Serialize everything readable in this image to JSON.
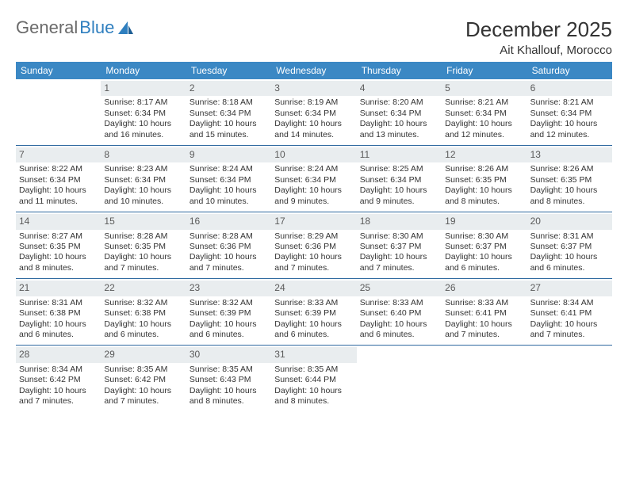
{
  "brand": {
    "part1": "General",
    "part2": "Blue",
    "logo_color": "#2f7fbf",
    "text_color": "#6a6a6a"
  },
  "header": {
    "title": "December 2025",
    "location": "Ait Khallouf, Morocco"
  },
  "colors": {
    "header_bg": "#3b88c4",
    "header_fg": "#ffffff",
    "divider": "#2f6aa0",
    "daynum_bg": "#e9edef"
  },
  "daynames": [
    "Sunday",
    "Monday",
    "Tuesday",
    "Wednesday",
    "Thursday",
    "Friday",
    "Saturday"
  ],
  "weeks": [
    [
      {
        "num": "",
        "sunrise": "",
        "sunset": "",
        "daylight": ""
      },
      {
        "num": "1",
        "sunrise": "Sunrise: 8:17 AM",
        "sunset": "Sunset: 6:34 PM",
        "daylight": "Daylight: 10 hours and 16 minutes."
      },
      {
        "num": "2",
        "sunrise": "Sunrise: 8:18 AM",
        "sunset": "Sunset: 6:34 PM",
        "daylight": "Daylight: 10 hours and 15 minutes."
      },
      {
        "num": "3",
        "sunrise": "Sunrise: 8:19 AM",
        "sunset": "Sunset: 6:34 PM",
        "daylight": "Daylight: 10 hours and 14 minutes."
      },
      {
        "num": "4",
        "sunrise": "Sunrise: 8:20 AM",
        "sunset": "Sunset: 6:34 PM",
        "daylight": "Daylight: 10 hours and 13 minutes."
      },
      {
        "num": "5",
        "sunrise": "Sunrise: 8:21 AM",
        "sunset": "Sunset: 6:34 PM",
        "daylight": "Daylight: 10 hours and 12 minutes."
      },
      {
        "num": "6",
        "sunrise": "Sunrise: 8:21 AM",
        "sunset": "Sunset: 6:34 PM",
        "daylight": "Daylight: 10 hours and 12 minutes."
      }
    ],
    [
      {
        "num": "7",
        "sunrise": "Sunrise: 8:22 AM",
        "sunset": "Sunset: 6:34 PM",
        "daylight": "Daylight: 10 hours and 11 minutes."
      },
      {
        "num": "8",
        "sunrise": "Sunrise: 8:23 AM",
        "sunset": "Sunset: 6:34 PM",
        "daylight": "Daylight: 10 hours and 10 minutes."
      },
      {
        "num": "9",
        "sunrise": "Sunrise: 8:24 AM",
        "sunset": "Sunset: 6:34 PM",
        "daylight": "Daylight: 10 hours and 10 minutes."
      },
      {
        "num": "10",
        "sunrise": "Sunrise: 8:24 AM",
        "sunset": "Sunset: 6:34 PM",
        "daylight": "Daylight: 10 hours and 9 minutes."
      },
      {
        "num": "11",
        "sunrise": "Sunrise: 8:25 AM",
        "sunset": "Sunset: 6:34 PM",
        "daylight": "Daylight: 10 hours and 9 minutes."
      },
      {
        "num": "12",
        "sunrise": "Sunrise: 8:26 AM",
        "sunset": "Sunset: 6:35 PM",
        "daylight": "Daylight: 10 hours and 8 minutes."
      },
      {
        "num": "13",
        "sunrise": "Sunrise: 8:26 AM",
        "sunset": "Sunset: 6:35 PM",
        "daylight": "Daylight: 10 hours and 8 minutes."
      }
    ],
    [
      {
        "num": "14",
        "sunrise": "Sunrise: 8:27 AM",
        "sunset": "Sunset: 6:35 PM",
        "daylight": "Daylight: 10 hours and 8 minutes."
      },
      {
        "num": "15",
        "sunrise": "Sunrise: 8:28 AM",
        "sunset": "Sunset: 6:35 PM",
        "daylight": "Daylight: 10 hours and 7 minutes."
      },
      {
        "num": "16",
        "sunrise": "Sunrise: 8:28 AM",
        "sunset": "Sunset: 6:36 PM",
        "daylight": "Daylight: 10 hours and 7 minutes."
      },
      {
        "num": "17",
        "sunrise": "Sunrise: 8:29 AM",
        "sunset": "Sunset: 6:36 PM",
        "daylight": "Daylight: 10 hours and 7 minutes."
      },
      {
        "num": "18",
        "sunrise": "Sunrise: 8:30 AM",
        "sunset": "Sunset: 6:37 PM",
        "daylight": "Daylight: 10 hours and 7 minutes."
      },
      {
        "num": "19",
        "sunrise": "Sunrise: 8:30 AM",
        "sunset": "Sunset: 6:37 PM",
        "daylight": "Daylight: 10 hours and 6 minutes."
      },
      {
        "num": "20",
        "sunrise": "Sunrise: 8:31 AM",
        "sunset": "Sunset: 6:37 PM",
        "daylight": "Daylight: 10 hours and 6 minutes."
      }
    ],
    [
      {
        "num": "21",
        "sunrise": "Sunrise: 8:31 AM",
        "sunset": "Sunset: 6:38 PM",
        "daylight": "Daylight: 10 hours and 6 minutes."
      },
      {
        "num": "22",
        "sunrise": "Sunrise: 8:32 AM",
        "sunset": "Sunset: 6:38 PM",
        "daylight": "Daylight: 10 hours and 6 minutes."
      },
      {
        "num": "23",
        "sunrise": "Sunrise: 8:32 AM",
        "sunset": "Sunset: 6:39 PM",
        "daylight": "Daylight: 10 hours and 6 minutes."
      },
      {
        "num": "24",
        "sunrise": "Sunrise: 8:33 AM",
        "sunset": "Sunset: 6:39 PM",
        "daylight": "Daylight: 10 hours and 6 minutes."
      },
      {
        "num": "25",
        "sunrise": "Sunrise: 8:33 AM",
        "sunset": "Sunset: 6:40 PM",
        "daylight": "Daylight: 10 hours and 6 minutes."
      },
      {
        "num": "26",
        "sunrise": "Sunrise: 8:33 AM",
        "sunset": "Sunset: 6:41 PM",
        "daylight": "Daylight: 10 hours and 7 minutes."
      },
      {
        "num": "27",
        "sunrise": "Sunrise: 8:34 AM",
        "sunset": "Sunset: 6:41 PM",
        "daylight": "Daylight: 10 hours and 7 minutes."
      }
    ],
    [
      {
        "num": "28",
        "sunrise": "Sunrise: 8:34 AM",
        "sunset": "Sunset: 6:42 PM",
        "daylight": "Daylight: 10 hours and 7 minutes."
      },
      {
        "num": "29",
        "sunrise": "Sunrise: 8:35 AM",
        "sunset": "Sunset: 6:42 PM",
        "daylight": "Daylight: 10 hours and 7 minutes."
      },
      {
        "num": "30",
        "sunrise": "Sunrise: 8:35 AM",
        "sunset": "Sunset: 6:43 PM",
        "daylight": "Daylight: 10 hours and 8 minutes."
      },
      {
        "num": "31",
        "sunrise": "Sunrise: 8:35 AM",
        "sunset": "Sunset: 6:44 PM",
        "daylight": "Daylight: 10 hours and 8 minutes."
      },
      {
        "num": "",
        "sunrise": "",
        "sunset": "",
        "daylight": ""
      },
      {
        "num": "",
        "sunrise": "",
        "sunset": "",
        "daylight": ""
      },
      {
        "num": "",
        "sunrise": "",
        "sunset": "",
        "daylight": ""
      }
    ]
  ]
}
